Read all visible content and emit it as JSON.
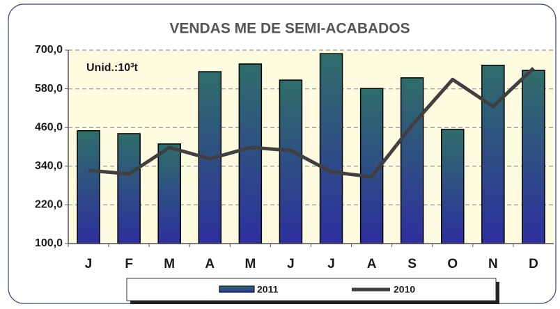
{
  "chart_data": {
    "type": "bar_line",
    "title": "VENDAS ME DE SEMI-ACABADOS",
    "annotation": "Unid.:10³t",
    "categories": [
      "J",
      "F",
      "M",
      "A",
      "M",
      "J",
      "J",
      "A",
      "S",
      "O",
      "N",
      "D"
    ],
    "series": [
      {
        "name": "2011",
        "type": "bar",
        "color": "#2f6e6a",
        "values": [
          450,
          441,
          409,
          633,
          657,
          607,
          689,
          581,
          614,
          454,
          653,
          637
        ]
      },
      {
        "name": "2010",
        "type": "line",
        "color": "#404040",
        "values": [
          327,
          316,
          398,
          363,
          398,
          389,
          322,
          307,
          467,
          609,
          525,
          644
        ]
      }
    ],
    "ylim": [
      100,
      700
    ],
    "yticks": [
      {
        "value": 100,
        "label": "100,0"
      },
      {
        "value": 220,
        "label": "220,0"
      },
      {
        "value": 340,
        "label": "340,0"
      },
      {
        "value": 460,
        "label": "460,0"
      },
      {
        "value": 580,
        "label": "580,0"
      },
      {
        "value": 700,
        "label": "700,0"
      }
    ],
    "grid": true
  }
}
